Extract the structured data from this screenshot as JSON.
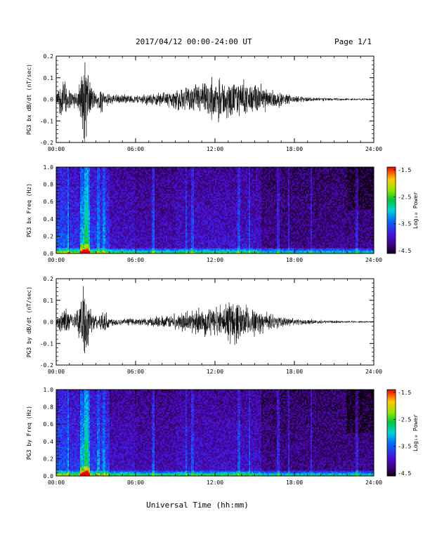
{
  "header": {
    "title": "2017/04/12  00:00-24:00 UT",
    "page": "Page 1/1"
  },
  "xaxis_label": "Universal Time (hh:mm)",
  "colors": {
    "trace": "#000000",
    "background": "#ffffff"
  },
  "chart_data": [
    {
      "type": "line",
      "name": "bx-waveform",
      "ylabel": "PG3 bx dB/dt (nT/sec)",
      "xlim": [
        0,
        24
      ],
      "ylim": [
        -0.2,
        0.2
      ],
      "x_ticks": [
        "00:00",
        "06:00",
        "12:00",
        "18:00",
        "24:00"
      ],
      "y_ticks": [
        "0.2",
        "0.1",
        "0.0",
        "-0.1",
        "-0.2"
      ],
      "envelope": {
        "hours": [
          0,
          0.3,
          0.5,
          0.8,
          1.0,
          1.5,
          1.9,
          2.1,
          2.3,
          2.5,
          3.0,
          3.4,
          3.7,
          4.0,
          4.5,
          5.0,
          6.0,
          7.0,
          8.0,
          9.0,
          10.0,
          11.0,
          12.0,
          13.0,
          14.0,
          15.0,
          16.0,
          17.0,
          18.0,
          20.0,
          22.0,
          24.0
        ],
        "amplitude": [
          0.02,
          0.08,
          0.1,
          0.07,
          0.05,
          0.03,
          0.12,
          0.2,
          0.17,
          0.09,
          0.03,
          0.06,
          0.02,
          0.03,
          0.025,
          0.02,
          0.02,
          0.025,
          0.03,
          0.045,
          0.06,
          0.08,
          0.09,
          0.085,
          0.08,
          0.07,
          0.05,
          0.03,
          0.015,
          0.008,
          0.005,
          0.004
        ]
      }
    },
    {
      "type": "heatmap",
      "name": "bx-spectrogram",
      "ylabel": "PG3 bx Freq (Hz)",
      "xlim": [
        0,
        24
      ],
      "ylim": [
        0,
        1.0
      ],
      "x_ticks": [
        "00:00",
        "06:00",
        "12:00",
        "18:00",
        "24:00"
      ],
      "y_ticks": [
        "1.0",
        "0.8",
        "0.6",
        "0.4",
        "0.2",
        "0.0"
      ],
      "colorbar": {
        "label": "Log₁₀ Power",
        "ticks": [
          "-1.5",
          "-2.5",
          "-3.5",
          "-4.5"
        ],
        "range": [
          -4.5,
          -1.5
        ]
      }
    },
    {
      "type": "line",
      "name": "by-waveform",
      "ylabel": "PG3 by dB/dt (nT/sec)",
      "xlim": [
        0,
        24
      ],
      "ylim": [
        -0.2,
        0.2
      ],
      "x_ticks": [
        "00:00",
        "06:00",
        "12:00",
        "18:00",
        "24:00"
      ],
      "y_ticks": [
        "0.2",
        "0.1",
        "0.0",
        "-0.1",
        "-0.2"
      ],
      "envelope": {
        "hours": [
          0,
          0.3,
          0.8,
          1.0,
          1.5,
          1.9,
          2.1,
          2.3,
          2.5,
          3.0,
          3.4,
          3.8,
          4.0,
          4.5,
          5.0,
          6.0,
          7.0,
          8.0,
          9.0,
          10.0,
          11.0,
          12.0,
          13.0,
          13.5,
          14.0,
          15.0,
          16.0,
          17.0,
          18.0,
          20.0,
          22.0,
          24.0
        ],
        "amplitude": [
          0.02,
          0.04,
          0.06,
          0.04,
          0.03,
          0.12,
          0.2,
          0.15,
          0.07,
          0.03,
          0.04,
          0.06,
          0.02,
          0.02,
          0.015,
          0.015,
          0.02,
          0.025,
          0.035,
          0.045,
          0.06,
          0.07,
          0.09,
          0.12,
          0.08,
          0.06,
          0.04,
          0.025,
          0.015,
          0.008,
          0.005,
          0.004
        ]
      }
    },
    {
      "type": "heatmap",
      "name": "by-spectrogram",
      "ylabel": "PG3 by Freq (Hz)",
      "xlim": [
        0,
        24
      ],
      "ylim": [
        0,
        1.0
      ],
      "x_ticks": [
        "00:00",
        "06:00",
        "12:00",
        "18:00",
        "24:00"
      ],
      "y_ticks": [
        "1.0",
        "0.8",
        "0.6",
        "0.4",
        "0.2",
        "0.0"
      ],
      "colorbar": {
        "label": "Log₁₀ Power",
        "ticks": [
          "-1.5",
          "-2.5",
          "-3.5",
          "-4.5"
        ],
        "range": [
          -4.5,
          -1.5
        ]
      }
    }
  ]
}
